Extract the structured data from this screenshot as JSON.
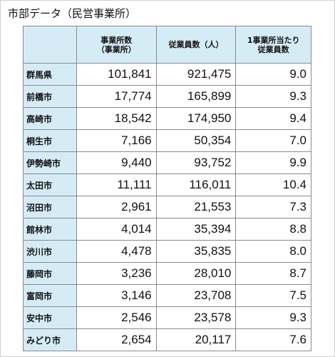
{
  "title": "市部データ（民営事業所）",
  "headers": {
    "city": "",
    "establishments_line1": "事業所数",
    "establishments_line2": "（事業所）",
    "employees": "従業員数（人）",
    "avg_line1": "1事業所当たり",
    "avg_line2": "従業員数"
  },
  "rows": [
    {
      "city": "群馬県",
      "establishments": "101,841",
      "employees": "921,475",
      "avg": "9.0"
    },
    {
      "city": "前橋市",
      "establishments": "17,774",
      "employees": "165,899",
      "avg": "9.3"
    },
    {
      "city": "高崎市",
      "establishments": "18,542",
      "employees": "174,950",
      "avg": "9.4"
    },
    {
      "city": "桐生市",
      "establishments": "7,166",
      "employees": "50,354",
      "avg": "7.0"
    },
    {
      "city": "伊勢崎市",
      "establishments": "9,440",
      "employees": "93,752",
      "avg": "9.9"
    },
    {
      "city": "太田市",
      "establishments": "11,111",
      "employees": "116,011",
      "avg": "10.4"
    },
    {
      "city": "沼田市",
      "establishments": "2,961",
      "employees": "21,553",
      "avg": "7.3"
    },
    {
      "city": "館林市",
      "establishments": "4,014",
      "employees": "35,394",
      "avg": "8.8"
    },
    {
      "city": "渋川市",
      "establishments": "4,478",
      "employees": "35,835",
      "avg": "8.0"
    },
    {
      "city": "藤岡市",
      "establishments": "3,236",
      "employees": "28,010",
      "avg": "8.7"
    },
    {
      "city": "富岡市",
      "establishments": "3,146",
      "employees": "23,708",
      "avg": "7.5"
    },
    {
      "city": "安中市",
      "establishments": "2,546",
      "employees": "23,578",
      "avg": "9.3"
    },
    {
      "city": "みどり市",
      "establishments": "2,654",
      "employees": "20,117",
      "avg": "7.6"
    }
  ],
  "colors": {
    "header_fill": "#d5ecf7",
    "border": "#8a8a8a"
  }
}
